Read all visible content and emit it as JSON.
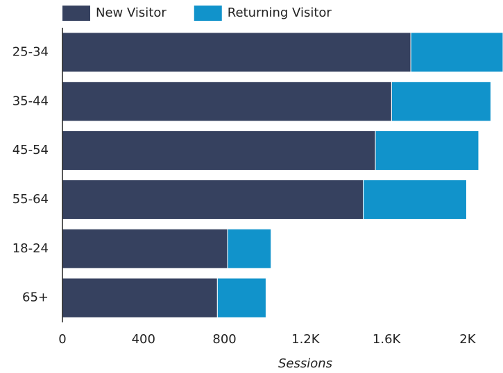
{
  "chart_data": {
    "type": "stacked-hbar",
    "categories": [
      "25-34",
      "35-44",
      "45-54",
      "55-64",
      "18-24",
      "65+"
    ],
    "series": [
      {
        "name": "New Visitor",
        "color": "#36415f",
        "values": [
          1720,
          1625,
          1545,
          1485,
          815,
          765
        ]
      },
      {
        "name": "Returning Visitor",
        "color": "#1193cb",
        "values": [
          455,
          490,
          510,
          510,
          215,
          240
        ]
      }
    ],
    "xlabel": "Sessions",
    "xlim": [
      0,
      2175
    ],
    "xticks": [
      0,
      400,
      800,
      {
        "value": 1200,
        "label": "1.2K"
      },
      {
        "value": 1600,
        "label": "1.6K"
      },
      {
        "value": 2000,
        "label": "2K"
      }
    ],
    "legend": "top"
  }
}
